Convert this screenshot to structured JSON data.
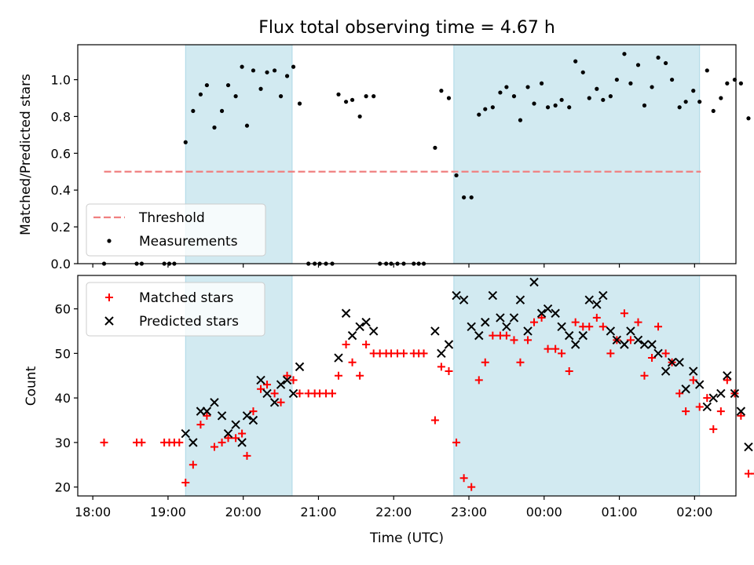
{
  "chart_data": [
    {
      "type": "scatter",
      "title": "Flux total observing time = 4.67 h",
      "ylabel": "Matched/Predicted stars",
      "xlabel": "",
      "ylim": [
        0,
        1.19
      ],
      "xlim": [
        "17:48",
        "02:33"
      ],
      "yticks": [
        0.0,
        0.2,
        0.4,
        0.6,
        0.8,
        1.0
      ],
      "ytick_labels": [
        "0.0",
        "0.2",
        "0.4",
        "0.6",
        "0.8",
        "1.0"
      ],
      "grid": false,
      "legend": {
        "position": "lower-left",
        "entries": [
          "Threshold",
          "Measurements"
        ]
      },
      "colors": {
        "threshold": "#f08080",
        "measurements": "#000000",
        "shade": "#add8e6"
      },
      "shaded_spans": [
        [
          "19:14",
          "20:39"
        ],
        [
          "22:48",
          "02:04"
        ]
      ],
      "threshold": {
        "name": "Threshold",
        "value": 0.5,
        "x_range": [
          "18:09",
          "02:05"
        ]
      },
      "series": [
        {
          "name": "Measurements",
          "points": [
            [
              "18:09",
              0.0
            ],
            [
              "18:35",
              0.0
            ],
            [
              "18:39",
              0.0
            ],
            [
              "18:57",
              0.0
            ],
            [
              "19:01",
              0.0
            ],
            [
              "19:05",
              0.0
            ],
            [
              "19:14",
              0.66
            ],
            [
              "19:20",
              0.83
            ],
            [
              "19:26",
              0.92
            ],
            [
              "19:31",
              0.97
            ],
            [
              "19:37",
              0.74
            ],
            [
              "19:43",
              0.83
            ],
            [
              "19:48",
              0.97
            ],
            [
              "19:54",
              0.91
            ],
            [
              "19:59",
              1.07
            ],
            [
              "20:03",
              0.75
            ],
            [
              "20:08",
              1.05
            ],
            [
              "20:14",
              0.95
            ],
            [
              "20:19",
              1.04
            ],
            [
              "20:25",
              1.05
            ],
            [
              "20:30",
              0.91
            ],
            [
              "20:35",
              1.02
            ],
            [
              "20:40",
              1.07
            ],
            [
              "20:45",
              0.87
            ],
            [
              "20:52",
              0.0
            ],
            [
              "20:57",
              0.0
            ],
            [
              "21:01",
              0.0
            ],
            [
              "21:06",
              0.0
            ],
            [
              "21:11",
              0.0
            ],
            [
              "21:16",
              0.92
            ],
            [
              "21:22",
              0.88
            ],
            [
              "21:27",
              0.89
            ],
            [
              "21:33",
              0.8
            ],
            [
              "21:38",
              0.91
            ],
            [
              "21:44",
              0.91
            ],
            [
              "21:49",
              0.0
            ],
            [
              "21:54",
              0.0
            ],
            [
              "21:58",
              0.0
            ],
            [
              "22:03",
              0.0
            ],
            [
              "22:08",
              0.0
            ],
            [
              "22:16",
              0.0
            ],
            [
              "22:20",
              0.0
            ],
            [
              "22:24",
              0.0
            ],
            [
              "22:33",
              0.63
            ],
            [
              "22:38",
              0.94
            ],
            [
              "22:44",
              0.9
            ],
            [
              "22:50",
              0.48
            ],
            [
              "22:56",
              0.36
            ],
            [
              "23:02",
              0.36
            ],
            [
              "23:08",
              0.81
            ],
            [
              "23:13",
              0.84
            ],
            [
              "23:19",
              0.85
            ],
            [
              "23:25",
              0.93
            ],
            [
              "23:30",
              0.96
            ],
            [
              "23:36",
              0.91
            ],
            [
              "23:41",
              0.78
            ],
            [
              "23:47",
              0.96
            ],
            [
              "23:52",
              0.87
            ],
            [
              "23:58",
              0.98
            ],
            [
              "00:03",
              0.85
            ],
            [
              "00:09",
              0.86
            ],
            [
              "00:14",
              0.89
            ],
            [
              "00:20",
              0.85
            ],
            [
              "00:25",
              1.1
            ],
            [
              "00:31",
              1.04
            ],
            [
              "00:36",
              0.9
            ],
            [
              "00:42",
              0.95
            ],
            [
              "00:47",
              0.89
            ],
            [
              "00:53",
              0.91
            ],
            [
              "00:58",
              1.0
            ],
            [
              "01:04",
              1.14
            ],
            [
              "01:09",
              0.98
            ],
            [
              "01:15",
              1.08
            ],
            [
              "01:20",
              0.86
            ],
            [
              "01:26",
              0.96
            ],
            [
              "01:31",
              1.12
            ],
            [
              "01:37",
              1.09
            ],
            [
              "01:42",
              1.0
            ],
            [
              "01:48",
              0.85
            ],
            [
              "01:53",
              0.88
            ],
            [
              "01:59",
              0.94
            ],
            [
              "02:04",
              0.88
            ],
            [
              "02:10",
              1.05
            ],
            [
              "02:15",
              0.83
            ],
            [
              "02:21",
              0.9
            ],
            [
              "02:26",
              0.98
            ],
            [
              "02:32",
              1.0
            ],
            [
              "02:37",
              0.98
            ],
            [
              "02:43",
              0.79
            ],
            [
              "02:50",
              0.0
            ]
          ]
        }
      ]
    },
    {
      "type": "scatter",
      "title": "",
      "xlabel": "Time (UTC)",
      "ylabel": "Count",
      "ylim": [
        18,
        67.5
      ],
      "xlim": [
        "17:48",
        "02:33"
      ],
      "xticks": [
        "18:00",
        "19:00",
        "20:00",
        "21:00",
        "22:00",
        "23:00",
        "00:00",
        "01:00",
        "02:00"
      ],
      "yticks": [
        20,
        30,
        40,
        50,
        60
      ],
      "ytick_labels": [
        "20",
        "30",
        "40",
        "50",
        "60"
      ],
      "grid": false,
      "legend": {
        "position": "upper-left",
        "entries": [
          "Matched stars",
          "Predicted stars"
        ]
      },
      "colors": {
        "matched": "#ff0000",
        "predicted": "#000000",
        "shade": "#add8e6"
      },
      "shaded_spans": [
        [
          "19:14",
          "20:39"
        ],
        [
          "22:48",
          "02:04"
        ]
      ],
      "series": [
        {
          "name": "Matched stars",
          "marker": "plus",
          "points": [
            [
              "18:09",
              30
            ],
            [
              "18:35",
              30
            ],
            [
              "18:39",
              30
            ],
            [
              "18:57",
              30
            ],
            [
              "19:01",
              30
            ],
            [
              "19:05",
              30
            ],
            [
              "19:09",
              30
            ],
            [
              "19:14",
              21
            ],
            [
              "19:20",
              25
            ],
            [
              "19:26",
              34
            ],
            [
              "19:31",
              36
            ],
            [
              "19:37",
              29
            ],
            [
              "19:43",
              30
            ],
            [
              "19:48",
              31
            ],
            [
              "19:54",
              31
            ],
            [
              "19:59",
              32
            ],
            [
              "20:03",
              27
            ],
            [
              "20:08",
              37
            ],
            [
              "20:14",
              42
            ],
            [
              "20:19",
              43
            ],
            [
              "20:25",
              41
            ],
            [
              "20:30",
              39
            ],
            [
              "20:35",
              45
            ],
            [
              "20:40",
              44
            ],
            [
              "20:45",
              41
            ],
            [
              "20:52",
              41
            ],
            [
              "20:57",
              41
            ],
            [
              "21:01",
              41
            ],
            [
              "21:06",
              41
            ],
            [
              "21:11",
              41
            ],
            [
              "21:16",
              45
            ],
            [
              "21:22",
              52
            ],
            [
              "21:27",
              48
            ],
            [
              "21:33",
              45
            ],
            [
              "21:38",
              52
            ],
            [
              "21:44",
              50
            ],
            [
              "21:49",
              50
            ],
            [
              "21:54",
              50
            ],
            [
              "21:58",
              50
            ],
            [
              "22:03",
              50
            ],
            [
              "22:08",
              50
            ],
            [
              "22:16",
              50
            ],
            [
              "22:20",
              50
            ],
            [
              "22:24",
              50
            ],
            [
              "22:33",
              35
            ],
            [
              "22:38",
              47
            ],
            [
              "22:44",
              46
            ],
            [
              "22:50",
              30
            ],
            [
              "22:56",
              22
            ],
            [
              "23:02",
              20
            ],
            [
              "23:08",
              44
            ],
            [
              "23:13",
              48
            ],
            [
              "23:19",
              54
            ],
            [
              "23:25",
              54
            ],
            [
              "23:30",
              54
            ],
            [
              "23:36",
              53
            ],
            [
              "23:41",
              48
            ],
            [
              "23:47",
              53
            ],
            [
              "23:52",
              57
            ],
            [
              "23:58",
              58
            ],
            [
              "00:03",
              51
            ],
            [
              "00:09",
              51
            ],
            [
              "00:14",
              50
            ],
            [
              "00:20",
              46
            ],
            [
              "00:25",
              57
            ],
            [
              "00:31",
              56
            ],
            [
              "00:36",
              56
            ],
            [
              "00:42",
              58
            ],
            [
              "00:47",
              56
            ],
            [
              "00:53",
              50
            ],
            [
              "00:58",
              53
            ],
            [
              "01:04",
              59
            ],
            [
              "01:09",
              53
            ],
            [
              "01:15",
              57
            ],
            [
              "01:20",
              45
            ],
            [
              "01:26",
              49
            ],
            [
              "01:31",
              56
            ],
            [
              "01:37",
              50
            ],
            [
              "01:42",
              48
            ],
            [
              "01:48",
              41
            ],
            [
              "01:53",
              37
            ],
            [
              "01:59",
              44
            ],
            [
              "02:04",
              38
            ],
            [
              "02:10",
              40
            ],
            [
              "02:15",
              33
            ],
            [
              "02:21",
              37
            ],
            [
              "02:26",
              44
            ],
            [
              "02:32",
              41
            ],
            [
              "02:37",
              36
            ],
            [
              "02:43",
              23
            ],
            [
              "02:48",
              23
            ]
          ]
        },
        {
          "name": "Predicted stars",
          "marker": "x",
          "points": [
            [
              "19:14",
              32
            ],
            [
              "19:20",
              30
            ],
            [
              "19:26",
              37
            ],
            [
              "19:31",
              37
            ],
            [
              "19:37",
              39
            ],
            [
              "19:43",
              36
            ],
            [
              "19:48",
              32
            ],
            [
              "19:54",
              34
            ],
            [
              "19:59",
              30
            ],
            [
              "20:03",
              36
            ],
            [
              "20:08",
              35
            ],
            [
              "20:14",
              44
            ],
            [
              "20:19",
              41
            ],
            [
              "20:25",
              39
            ],
            [
              "20:30",
              43
            ],
            [
              "20:35",
              44
            ],
            [
              "20:40",
              41
            ],
            [
              "20:45",
              47
            ],
            [
              "21:16",
              49
            ],
            [
              "21:22",
              59
            ],
            [
              "21:27",
              54
            ],
            [
              "21:33",
              56
            ],
            [
              "21:38",
              57
            ],
            [
              "21:44",
              55
            ],
            [
              "22:33",
              55
            ],
            [
              "22:38",
              50
            ],
            [
              "22:44",
              52
            ],
            [
              "22:50",
              63
            ],
            [
              "22:56",
              62
            ],
            [
              "23:02",
              56
            ],
            [
              "23:08",
              54
            ],
            [
              "23:13",
              57
            ],
            [
              "23:19",
              63
            ],
            [
              "23:25",
              58
            ],
            [
              "23:30",
              56
            ],
            [
              "23:36",
              58
            ],
            [
              "23:41",
              62
            ],
            [
              "23:47",
              55
            ],
            [
              "23:52",
              66
            ],
            [
              "23:58",
              59
            ],
            [
              "00:03",
              60
            ],
            [
              "00:09",
              59
            ],
            [
              "00:14",
              56
            ],
            [
              "00:20",
              54
            ],
            [
              "00:25",
              52
            ],
            [
              "00:31",
              54
            ],
            [
              "00:36",
              62
            ],
            [
              "00:42",
              61
            ],
            [
              "00:47",
              63
            ],
            [
              "00:53",
              55
            ],
            [
              "00:58",
              53
            ],
            [
              "01:04",
              52
            ],
            [
              "01:09",
              55
            ],
            [
              "01:15",
              53
            ],
            [
              "01:20",
              52
            ],
            [
              "01:26",
              52
            ],
            [
              "01:31",
              50
            ],
            [
              "01:37",
              46
            ],
            [
              "01:42",
              48
            ],
            [
              "01:48",
              48
            ],
            [
              "01:53",
              42
            ],
            [
              "01:59",
              46
            ],
            [
              "02:04",
              43
            ],
            [
              "02:10",
              38
            ],
            [
              "02:15",
              40
            ],
            [
              "02:21",
              41
            ],
            [
              "02:26",
              45
            ],
            [
              "02:32",
              41
            ],
            [
              "02:37",
              37
            ],
            [
              "02:43",
              29
            ]
          ]
        }
      ]
    }
  ]
}
